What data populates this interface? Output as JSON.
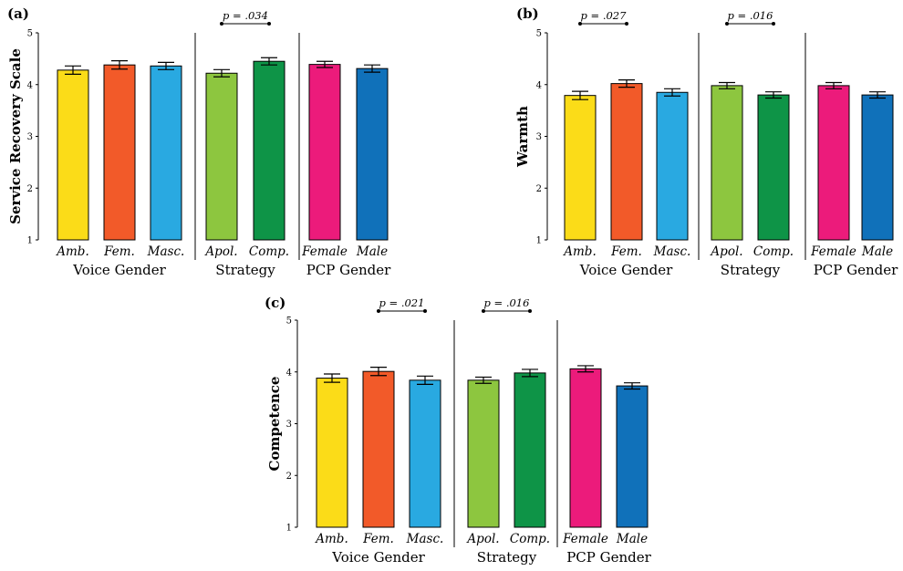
{
  "chart_data": [
    {
      "type": "bar",
      "panel": "(a)",
      "ylabel": "Service Recovery Scale",
      "ylim": [
        1,
        5
      ],
      "yticks": [
        "1",
        "2",
        "3",
        "4",
        "5"
      ],
      "groups": [
        {
          "name": "Voice Gender",
          "categories": [
            "Amb.",
            "Fem.",
            "Masc."
          ],
          "values": [
            4.28,
            4.38,
            4.36
          ],
          "errors": [
            0.08,
            0.08,
            0.07
          ],
          "colors": [
            "#fbdc18",
            "#f25a29",
            "#29a9e1"
          ]
        },
        {
          "name": "Strategy",
          "categories": [
            "Apol.",
            "Comp."
          ],
          "values": [
            4.22,
            4.45
          ],
          "errors": [
            0.07,
            0.07
          ],
          "colors": [
            "#8dc63f",
            "#0e9447"
          ]
        },
        {
          "name": "PCP Gender",
          "categories": [
            "Female",
            "Male"
          ],
          "values": [
            4.39,
            4.31
          ],
          "errors": [
            0.06,
            0.07
          ],
          "colors": [
            "#ec1b7b",
            "#1071ba"
          ]
        }
      ],
      "annotations": [
        {
          "text": "p = .034",
          "group": 1,
          "from": 0,
          "to": 1
        }
      ]
    },
    {
      "type": "bar",
      "panel": "(b)",
      "ylabel": "Warmth",
      "ylim": [
        1,
        5
      ],
      "yticks": [
        "1",
        "2",
        "3",
        "4",
        "5"
      ],
      "groups": [
        {
          "name": "Voice Gender",
          "categories": [
            "Amb.",
            "Fem.",
            "Masc."
          ],
          "values": [
            3.79,
            4.02,
            3.85
          ],
          "errors": [
            0.08,
            0.07,
            0.07
          ],
          "colors": [
            "#fbdc18",
            "#f25a29",
            "#29a9e1"
          ]
        },
        {
          "name": "Strategy",
          "categories": [
            "Apol.",
            "Comp."
          ],
          "values": [
            3.98,
            3.8
          ],
          "errors": [
            0.06,
            0.06
          ],
          "colors": [
            "#8dc63f",
            "#0e9447"
          ]
        },
        {
          "name": "PCP Gender",
          "categories": [
            "Female",
            "Male"
          ],
          "values": [
            3.98,
            3.8
          ],
          "errors": [
            0.06,
            0.06
          ],
          "colors": [
            "#ec1b7b",
            "#1071ba"
          ]
        }
      ],
      "annotations": [
        {
          "text": "p = .027",
          "group": 0,
          "from": 0,
          "to": 1
        },
        {
          "text": "p = .016",
          "group": 1,
          "from": 0,
          "to": 1
        }
      ]
    },
    {
      "type": "bar",
      "panel": "(c)",
      "ylabel": "Competence",
      "ylim": [
        1,
        5
      ],
      "yticks": [
        "1",
        "2",
        "3",
        "4",
        "5"
      ],
      "groups": [
        {
          "name": "Voice Gender",
          "categories": [
            "Amb.",
            "Fem.",
            "Masc."
          ],
          "values": [
            3.88,
            4.01,
            3.84
          ],
          "errors": [
            0.08,
            0.08,
            0.08
          ],
          "colors": [
            "#fbdc18",
            "#f25a29",
            "#29a9e1"
          ]
        },
        {
          "name": "Strategy",
          "categories": [
            "Apol.",
            "Comp."
          ],
          "values": [
            3.84,
            3.98
          ],
          "errors": [
            0.06,
            0.07
          ],
          "colors": [
            "#8dc63f",
            "#0e9447"
          ]
        },
        {
          "name": "PCP Gender",
          "categories": [
            "Female",
            "Male"
          ],
          "values": [
            4.06,
            3.73
          ],
          "errors": [
            0.06,
            0.06
          ],
          "colors": [
            "#ec1b7b",
            "#1071ba"
          ]
        }
      ],
      "annotations": [
        {
          "text": "p = .021",
          "group": 0,
          "from": 1,
          "to": 2
        },
        {
          "text": "p = .016",
          "group": 1,
          "from": 0,
          "to": 1
        }
      ]
    }
  ]
}
